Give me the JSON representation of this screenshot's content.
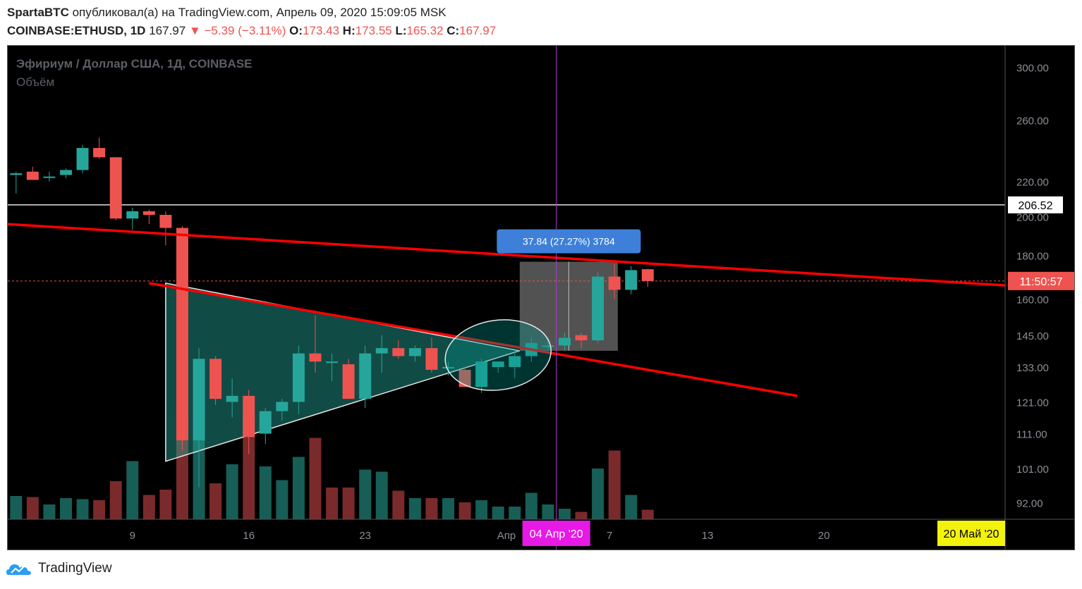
{
  "header": {
    "author": "SpartaBTC",
    "published_text": "опубликовал(а) на TradingView.com, Апрель 09, 2020 15:09:05 MSK",
    "symbol": "COINBASE:ETHUSD, 1D",
    "last": "167.97",
    "arrow": "▼",
    "change": "−5.39 (−3.11%)",
    "o_label": "O:",
    "o_value": "173.43",
    "h_label": "H:",
    "h_value": "173.55",
    "l_label": "L:",
    "l_value": "165.32",
    "c_label": "C:",
    "c_value": "167.97"
  },
  "legend": {
    "title": "Эфириум / Доллар США, 1Д, COINBASE",
    "volume": "Объём"
  },
  "colors": {
    "up": "#26a69a",
    "down": "#ef5350",
    "vol_up": "#175e57",
    "vol_down": "#7a2a2a",
    "trendline": "#ff0000",
    "crosshair": "#b03ad8",
    "measure_label_bg": "#3d7fd9",
    "time_label_bg": "#e619e6",
    "date_label_bg": "#f2f20c"
  },
  "chart_data": {
    "type": "candlestick",
    "title": "Эфириум / Доллар США, 1Д, COINBASE",
    "y_scale": "log",
    "ylim": [
      88,
      318
    ],
    "y_ticks": [
      300,
      260,
      220,
      200,
      180,
      160,
      145,
      133,
      121,
      111,
      101,
      92
    ],
    "y_tick_labels": [
      "300.00",
      "260.00",
      "220.00",
      "200.00",
      "180.00",
      "160.00",
      "145.00",
      "133.00",
      "121.00",
      "111.00",
      "101.00",
      "92.00"
    ],
    "x_index_range": [
      -0.5,
      59.5
    ],
    "x_ticks": [
      {
        "i": 7,
        "label": "9"
      },
      {
        "i": 14,
        "label": "16"
      },
      {
        "i": 21,
        "label": "23"
      },
      {
        "i": 29.5,
        "label": "Апр"
      },
      {
        "i": 35.7,
        "label": "7"
      },
      {
        "i": 41.6,
        "label": "13"
      },
      {
        "i": 48.6,
        "label": "20"
      }
    ],
    "candles": [
      {
        "o": 224,
        "h": 226,
        "l": 213,
        "c": 225
      },
      {
        "o": 226,
        "h": 229,
        "l": 221,
        "c": 221
      },
      {
        "o": 223,
        "h": 226,
        "l": 220,
        "c": 223
      },
      {
        "o": 224,
        "h": 228,
        "l": 222,
        "c": 227
      },
      {
        "o": 227,
        "h": 243,
        "l": 225,
        "c": 241
      },
      {
        "o": 241,
        "h": 248,
        "l": 234,
        "c": 235
      },
      {
        "o": 235,
        "h": 235,
        "l": 198,
        "c": 199
      },
      {
        "o": 199,
        "h": 205,
        "l": 193,
        "c": 203
      },
      {
        "o": 203,
        "h": 204,
        "l": 196,
        "c": 201
      },
      {
        "o": 201,
        "h": 203,
        "l": 185,
        "c": 194
      },
      {
        "o": 194,
        "h": 195,
        "l": 106,
        "c": 109
      },
      {
        "o": 109,
        "h": 140,
        "l": 96,
        "c": 136
      },
      {
        "o": 136,
        "h": 137,
        "l": 120,
        "c": 122
      },
      {
        "o": 121,
        "h": 129,
        "l": 116,
        "c": 123
      },
      {
        "o": 123,
        "h": 125,
        "l": 105,
        "c": 110
      },
      {
        "o": 111,
        "h": 119,
        "l": 108,
        "c": 118
      },
      {
        "o": 118,
        "h": 122,
        "l": 115,
        "c": 121
      },
      {
        "o": 121,
        "h": 141,
        "l": 117,
        "c": 138
      },
      {
        "o": 138,
        "h": 153,
        "l": 131,
        "c": 135
      },
      {
        "o": 135,
        "h": 138,
        "l": 128,
        "c": 135
      },
      {
        "o": 134,
        "h": 136,
        "l": 122,
        "c": 122
      },
      {
        "o": 122,
        "h": 141,
        "l": 119,
        "c": 138
      },
      {
        "o": 138,
        "h": 145,
        "l": 131,
        "c": 140
      },
      {
        "o": 140,
        "h": 143,
        "l": 136,
        "c": 137
      },
      {
        "o": 137,
        "h": 141,
        "l": 135,
        "c": 140
      },
      {
        "o": 140,
        "h": 144,
        "l": 131,
        "c": 132
      },
      {
        "o": 133,
        "h": 135,
        "l": 130,
        "c": 133
      },
      {
        "o": 132,
        "h": 133,
        "l": 126,
        "c": 126
      },
      {
        "o": 126,
        "h": 136,
        "l": 124,
        "c": 135
      },
      {
        "o": 133,
        "h": 135,
        "l": 131,
        "c": 135
      },
      {
        "o": 133,
        "h": 139,
        "l": 129,
        "c": 137
      },
      {
        "o": 137,
        "h": 144,
        "l": 135,
        "c": 142
      },
      {
        "o": 141,
        "h": 144,
        "l": 138,
        "c": 141
      },
      {
        "o": 141,
        "h": 146,
        "l": 139,
        "c": 144
      },
      {
        "o": 145,
        "h": 146,
        "l": 140,
        "c": 143
      },
      {
        "o": 143,
        "h": 172,
        "l": 142,
        "c": 170
      },
      {
        "o": 170,
        "h": 176,
        "l": 160,
        "c": 164
      },
      {
        "o": 164,
        "h": 175,
        "l": 162,
        "c": 173
      },
      {
        "o": 173.43,
        "h": 173.55,
        "l": 165.32,
        "c": 167.97
      }
    ],
    "volume_up": [
      true,
      false,
      true,
      true,
      true,
      false,
      false,
      true,
      false,
      false,
      false,
      true,
      false,
      true,
      false,
      true,
      true,
      true,
      false,
      false,
      false,
      true,
      true,
      false,
      true,
      false,
      true,
      false,
      true,
      true,
      true,
      true,
      true,
      true,
      false,
      true,
      false,
      true,
      false
    ],
    "volume_rel": [
      0.22,
      0.21,
      0.14,
      0.2,
      0.19,
      0.18,
      0.36,
      0.55,
      0.23,
      0.28,
      1.0,
      0.95,
      0.34,
      0.52,
      0.97,
      0.5,
      0.37,
      0.59,
      0.77,
      0.3,
      0.3,
      0.47,
      0.45,
      0.27,
      0.2,
      0.2,
      0.2,
      0.16,
      0.18,
      0.12,
      0.12,
      0.25,
      0.14,
      0.1,
      0.07,
      0.48,
      0.65,
      0.23,
      0.09
    ],
    "volume_max_px": 150,
    "horizontal_level": {
      "price": 206.52,
      "label": "206.52"
    },
    "current_price_line": {
      "price": 167.97,
      "label": "11:50:57"
    },
    "trendlines": [
      {
        "from": [
          -0.5,
          196
        ],
        "to": [
          59.5,
          166
        ]
      },
      {
        "from": [
          8,
          167
        ],
        "to": [
          47,
          123
        ]
      }
    ],
    "triangle": [
      [
        9,
        167
      ],
      [
        9,
        103
      ],
      [
        30.3,
        139
      ]
    ],
    "ellipse": {
      "i_from": 25.8,
      "i_to": 32.2,
      "p_top": 151,
      "p_bottom": 125
    },
    "measure_box": {
      "i_from": 30.3,
      "i_to": 36.2,
      "p_top": 177,
      "p_bottom": 139,
      "label": "37.84 (27.27%) 3784"
    },
    "crosshair_i": 32.5,
    "crosshair_label": "04 Апр '20",
    "end_date_label": "20 Май '20"
  },
  "footer": {
    "brand": "TradingView"
  }
}
